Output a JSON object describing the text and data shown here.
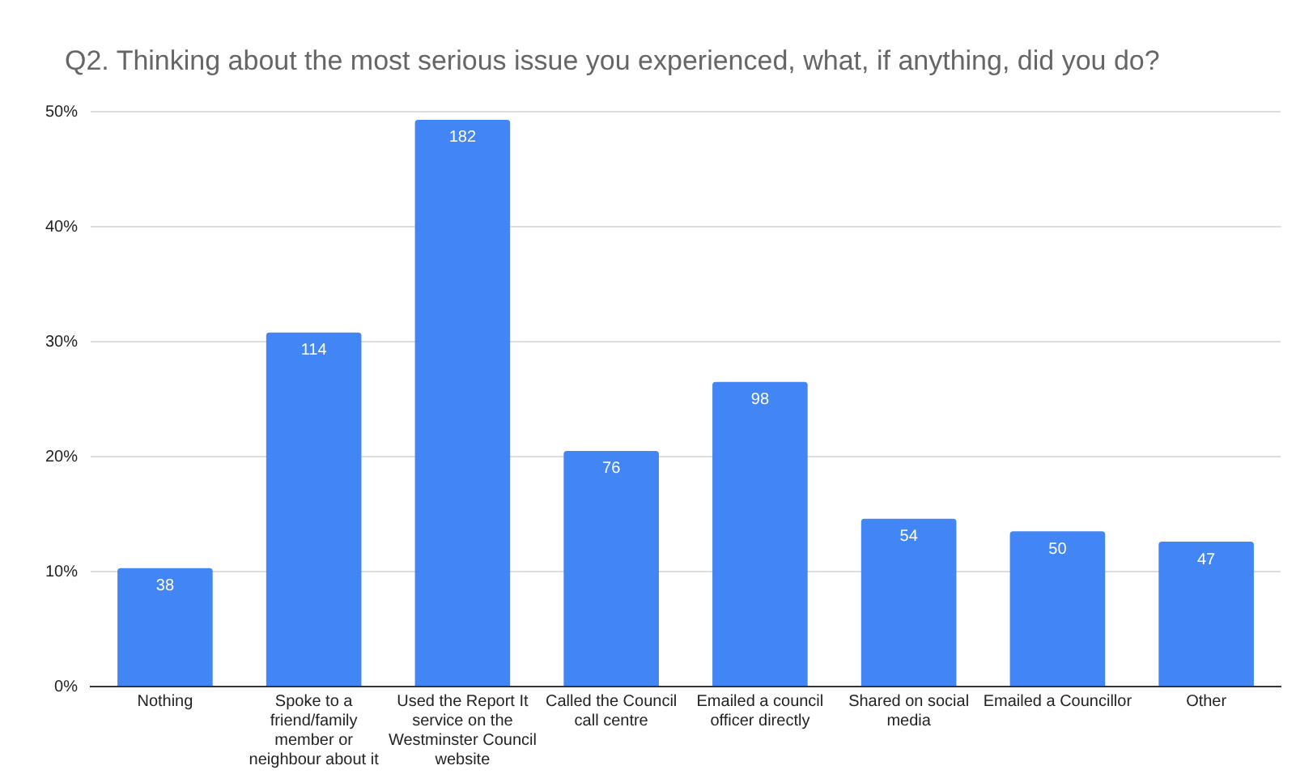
{
  "chart_data": {
    "type": "bar",
    "title": "Q2. Thinking about the most serious issue you experienced, what, if anything, did you do?",
    "categories": [
      "Nothing",
      "Spoke to a friend/family member or neighbour about it",
      "Used the Report It service on the Westminster Council website",
      "Called the Council call centre",
      "Emailed a council officer directly",
      "Shared on social media",
      "Emailed a Councillor",
      "Other"
    ],
    "values": [
      10.3,
      30.8,
      49.3,
      20.5,
      26.5,
      14.6,
      13.5,
      12.6
    ],
    "annotations": [
      {
        "text": "38",
        "x": "Nothing",
        "y": 10.3
      },
      {
        "text": "114",
        "x": "Spoke to a friend/family member or neighbour about it",
        "y": 30.8
      },
      {
        "text": "182",
        "x": "Used the Report It service on the Westminster Council website",
        "y": 49.3
      },
      {
        "text": "76",
        "x": "Called the Council call centre",
        "y": 20.5
      },
      {
        "text": "98",
        "x": "Emailed a council officer directly",
        "y": 26.5
      },
      {
        "text": "54",
        "x": "Shared on social media",
        "y": 14.6
      },
      {
        "text": "50",
        "x": "Emailed a Councillor",
        "y": 13.5
      },
      {
        "text": "47",
        "x": "Other",
        "y": 12.6
      }
    ],
    "color": "#4285f4",
    "ylim": [
      0,
      50
    ],
    "yticks": [
      {
        "value": 0,
        "label": "0%"
      },
      {
        "value": 10,
        "label": "10%"
      },
      {
        "value": 20,
        "label": "20%"
      },
      {
        "value": 30,
        "label": "30%"
      },
      {
        "value": 40,
        "label": "40%"
      },
      {
        "value": 50,
        "label": "50%"
      }
    ],
    "grid": "y",
    "legend": false
  }
}
